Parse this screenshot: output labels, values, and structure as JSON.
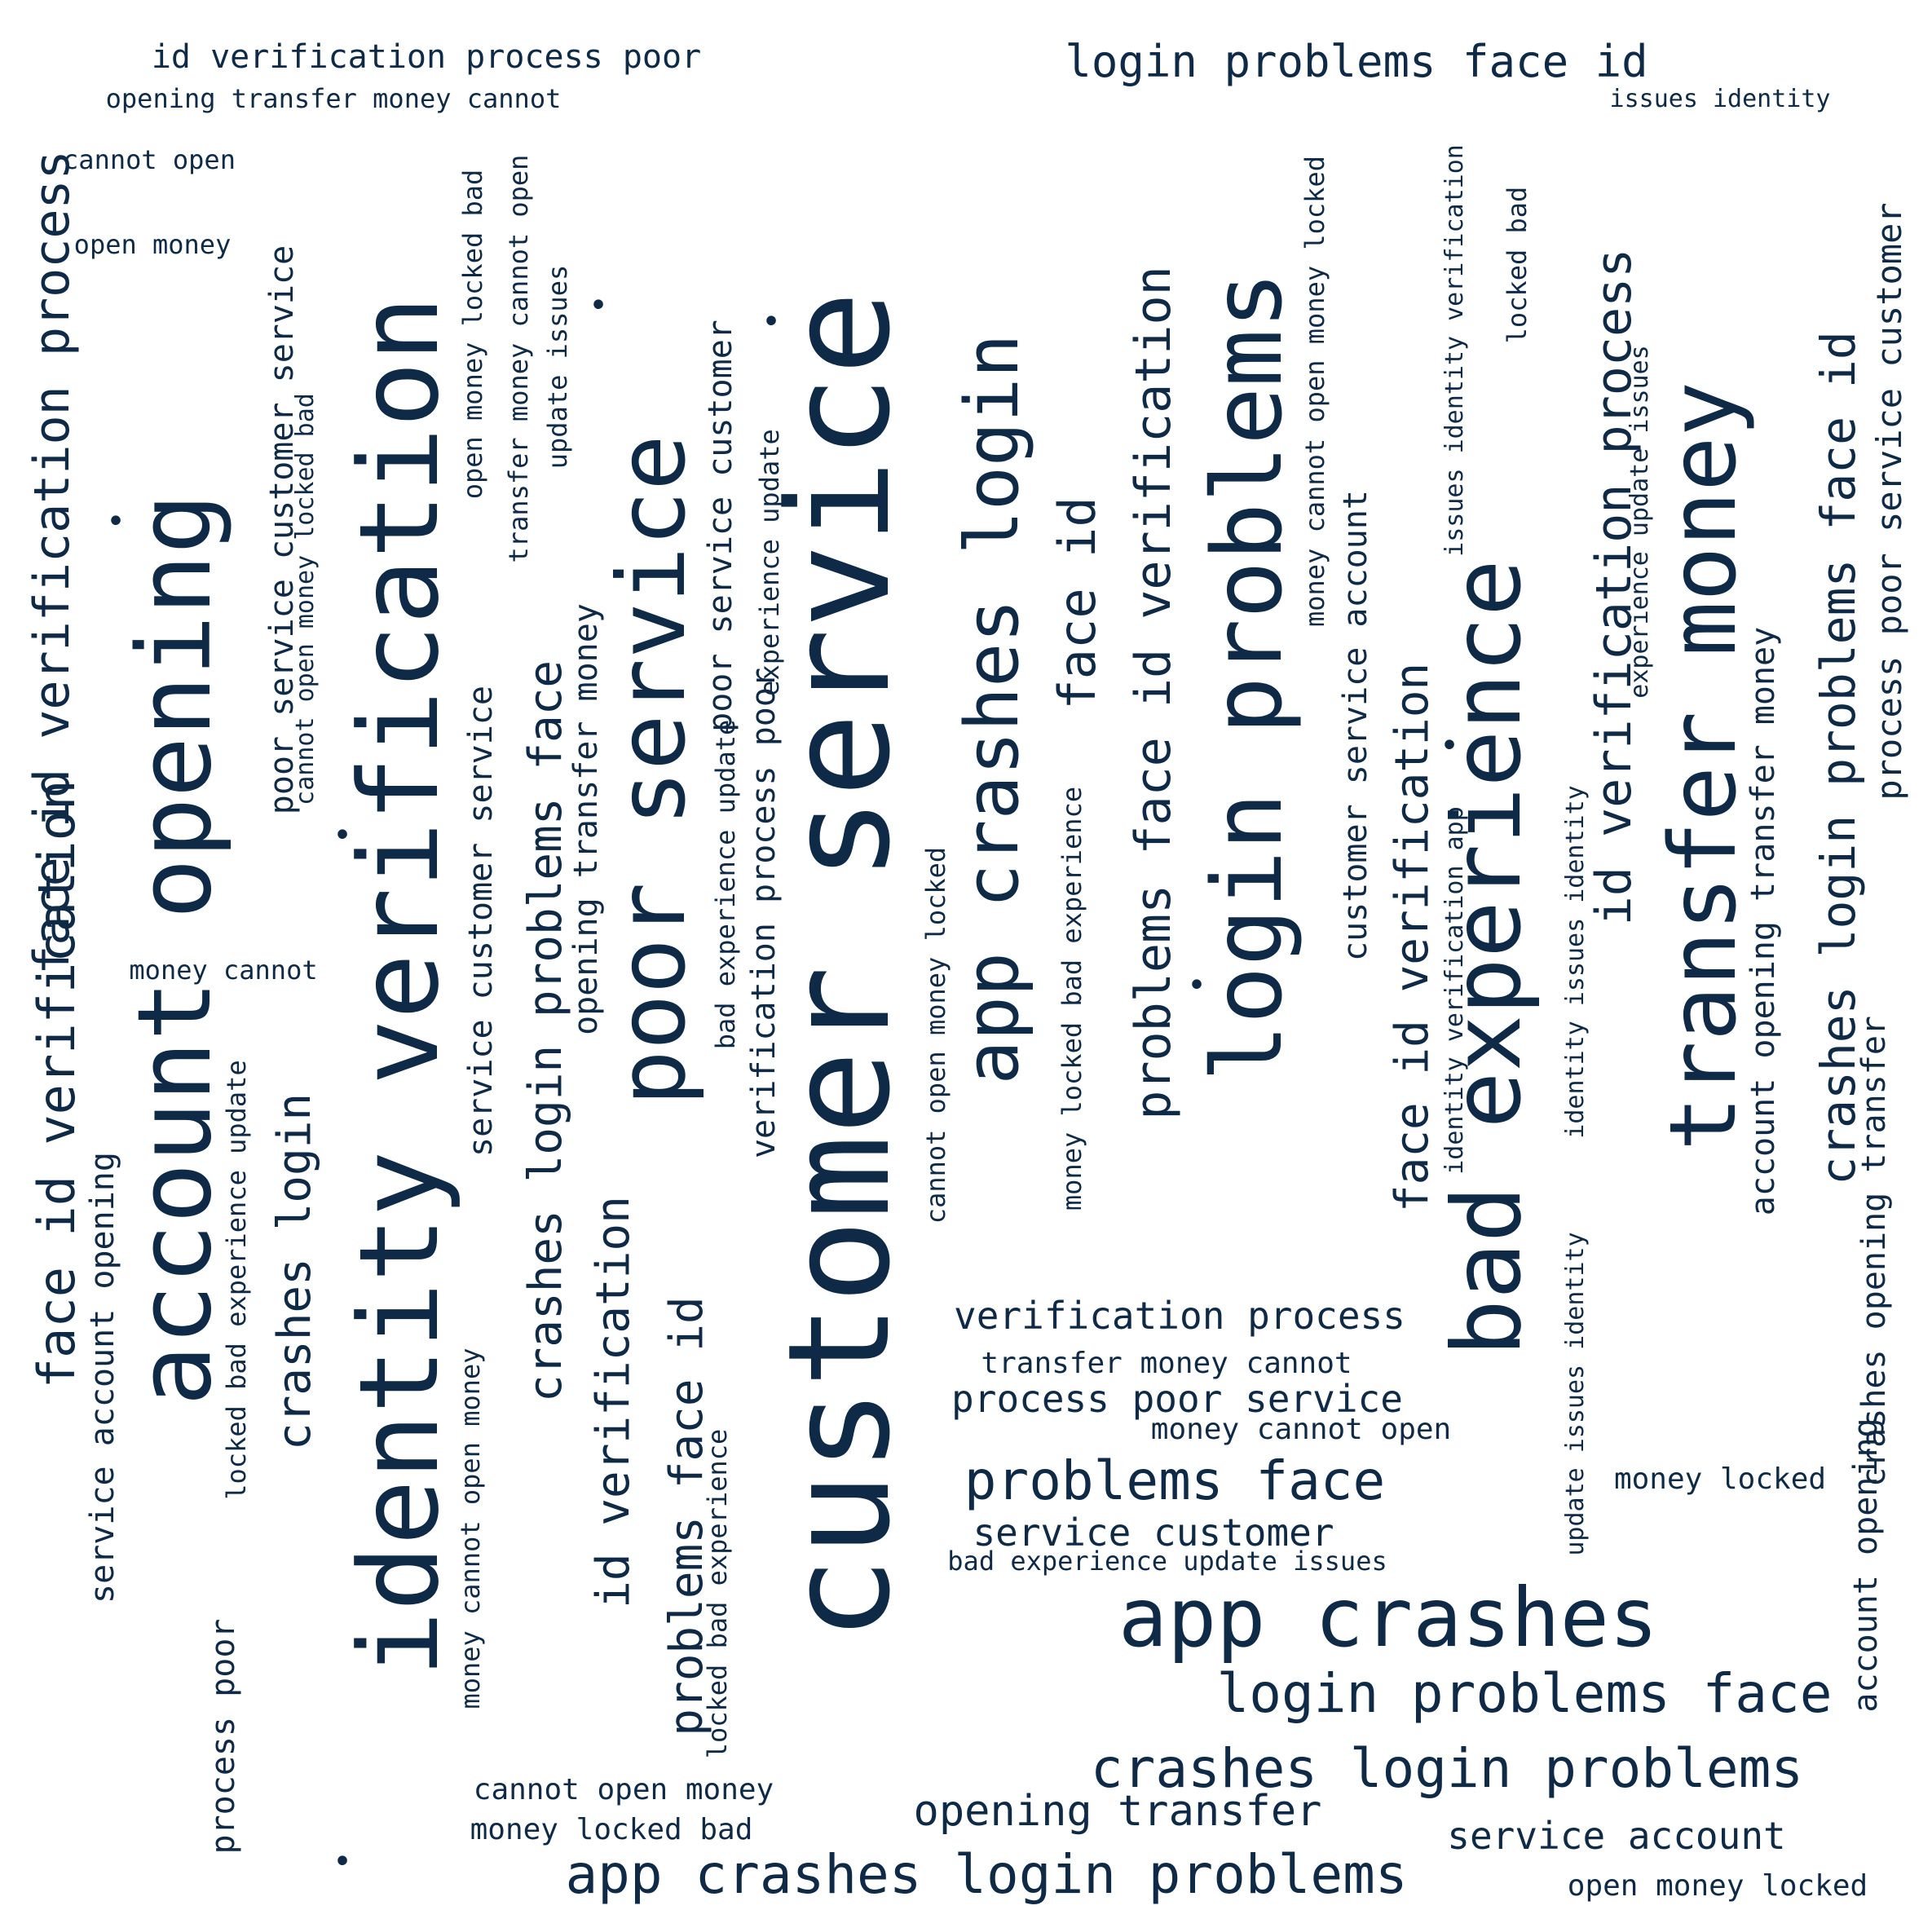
{
  "style": {
    "text_color": "#0e2a47",
    "background": "#ffffff"
  },
  "words": [
    "customer service",
    "identity verification",
    "account opening",
    "poor service",
    "login problems",
    "bad experience",
    "transfer money",
    "app crashes",
    "login problems face id",
    "id verification process poor",
    "opening transfer money cannot",
    "issues identity",
    "cannot open",
    "open money",
    "money cannot",
    "app crashes login",
    "face id verification",
    "id verification process",
    "face id",
    "problems face id verification",
    "face id verification process",
    "crashes login problems face id",
    "process poor service customer",
    "account opening transfer money",
    "crashes login problems face",
    "poor service customer service",
    "service customer service",
    "opening transfer money",
    "id verification",
    "problems face id",
    "verification process poor",
    "crashes login",
    "service account opening",
    "face id verification",
    "process poor",
    "customer service account",
    "account opening",
    "crashes opening transfer",
    "verification process",
    "transfer money cannot",
    "process poor service",
    "money cannot open",
    "problems face",
    "service customer",
    "bad experience update issues",
    "login problems face",
    "crashes login problems",
    "cannot open money",
    "opening transfer",
    "money locked bad",
    "service account",
    "app crashes login problems",
    "open money locked",
    "money locked",
    "open money locked bad",
    "transfer money cannot open",
    "update issues",
    "cannot open money locked bad",
    "locked bad experience update",
    "money cannot open money",
    "locked bad experience",
    "bad experience update",
    "experience update",
    "poor service customer",
    "cannot open money locked",
    "money locked bad experience",
    "money cannot open money locked",
    "issues identity verification",
    "identity verification app",
    "identity issues identity",
    "update issues identity",
    "locked bad",
    "experience update issues"
  ]
}
